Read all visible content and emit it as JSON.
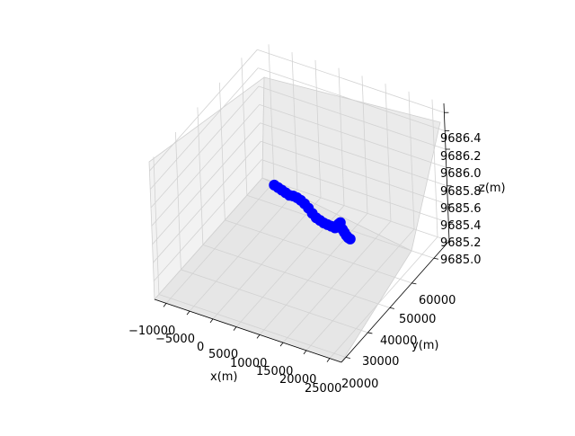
{
  "chart_data": {
    "type": "scatter",
    "projection": "3d",
    "title": "",
    "xlabel": "x(m)",
    "ylabel": "y(m)",
    "zlabel": "z(m)",
    "xlim": [
      -12500,
      27500
    ],
    "ylim": [
      18000,
      67000
    ],
    "zlim": [
      9685.0,
      9686.5
    ],
    "xticks": [
      "−10000",
      "−5000",
      "0",
      "5000",
      "10000",
      "15000",
      "20000",
      "25000"
    ],
    "yticks": [
      "20000",
      "30000",
      "40000",
      "50000",
      "60000"
    ],
    "zticks": [
      "9685.0",
      "9685.2",
      "9685.4",
      "9685.6",
      "9685.8",
      "9686.0",
      "9686.2",
      "9686.4"
    ],
    "grid": true,
    "marker_color": "#0000ff",
    "points": [
      {
        "x": -2500,
        "y": 52000,
        "z": 9685.5
      },
      {
        "x": -1500,
        "y": 51600,
        "z": 9685.5
      },
      {
        "x": -500,
        "y": 51200,
        "z": 9685.5
      },
      {
        "x": 500,
        "y": 50800,
        "z": 9685.5
      },
      {
        "x": 1500,
        "y": 50400,
        "z": 9685.5
      },
      {
        "x": 2500,
        "y": 50000,
        "z": 9685.52
      },
      {
        "x": 3500,
        "y": 49600,
        "z": 9685.53
      },
      {
        "x": 4500,
        "y": 49200,
        "z": 9685.53
      },
      {
        "x": 5500,
        "y": 48800,
        "z": 9685.52
      },
      {
        "x": 6500,
        "y": 48400,
        "z": 9685.5
      },
      {
        "x": 7500,
        "y": 48000,
        "z": 9685.47
      },
      {
        "x": 8500,
        "y": 47600,
        "z": 9685.45
      },
      {
        "x": 9500,
        "y": 47200,
        "z": 9685.45
      },
      {
        "x": 10500,
        "y": 46800,
        "z": 9685.45
      },
      {
        "x": 11500,
        "y": 46400,
        "z": 9685.46
      },
      {
        "x": 12500,
        "y": 46000,
        "z": 9685.47
      },
      {
        "x": 13500,
        "y": 45600,
        "z": 9685.48
      },
      {
        "x": 14500,
        "y": 45200,
        "z": 9685.55
      },
      {
        "x": 15000,
        "y": 45000,
        "z": 9685.58
      },
      {
        "x": 15500,
        "y": 44800,
        "z": 9685.52
      },
      {
        "x": 16000,
        "y": 44600,
        "z": 9685.5
      },
      {
        "x": 16500,
        "y": 44400,
        "z": 9685.48
      },
      {
        "x": 17000,
        "y": 44200,
        "z": 9685.47
      },
      {
        "x": 17500,
        "y": 44000,
        "z": 9685.47
      }
    ]
  }
}
